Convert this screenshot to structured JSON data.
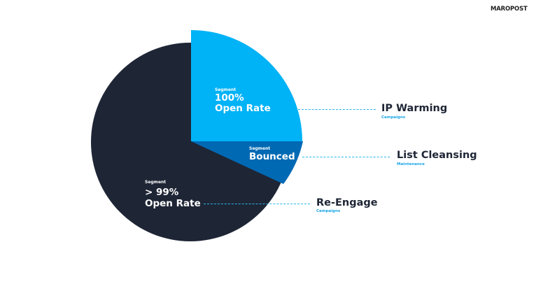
{
  "logo": "MAROPOST",
  "colors": {
    "dark": "#1e2535",
    "light_blue": "#00b2f6",
    "bounced": "#0069b4",
    "dash": "#29b6ea"
  },
  "segments": [
    {
      "label_small": "Segment",
      "line1": "100%",
      "line2": "Open Rate",
      "target": "IP Warming",
      "target_sub": "Campaigns"
    },
    {
      "label_small": "Segment",
      "line1": "Bounced",
      "target": "List Cleansing",
      "target_sub": "Maintenance"
    },
    {
      "label_small": "Segment",
      "line1": "> 99%",
      "line2": "Open Rate",
      "target": "Re-Engage",
      "target_sub": "Campaigns"
    }
  ]
}
